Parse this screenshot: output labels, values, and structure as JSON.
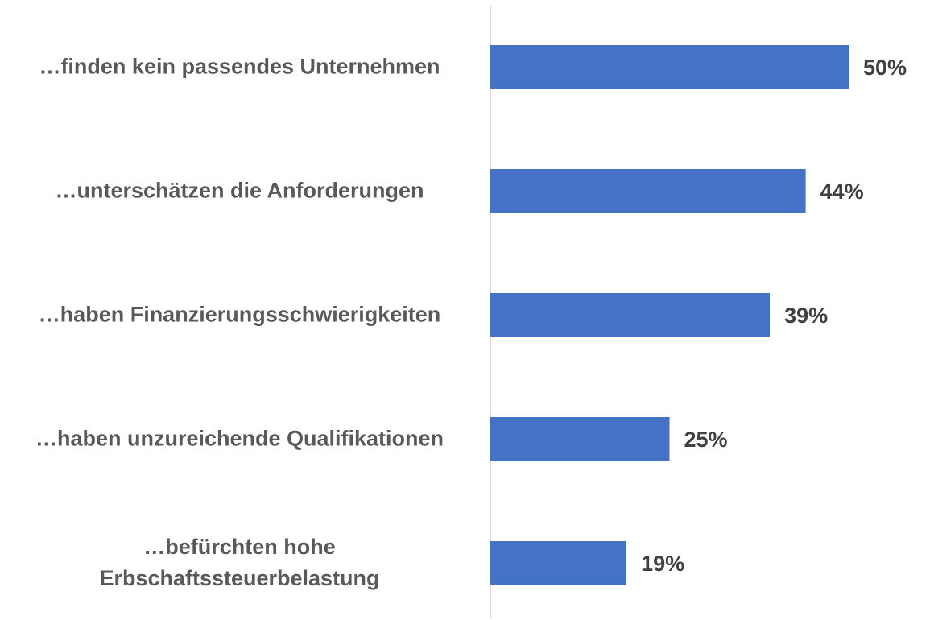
{
  "chart_data": {
    "type": "barh",
    "categories": [
      "…finden kein passendes Unternehmen",
      "…unterschätzen die Anforderungen",
      "…haben Finanzierungsschwierigkeiten",
      "…haben unzureichende Qualifikationen",
      "…befürchten hohe Erbschaftssteuerbelastung"
    ],
    "values": [
      50,
      44,
      39,
      25,
      19
    ],
    "value_labels": [
      "50%",
      "44%",
      "39%",
      "25%",
      "19%"
    ],
    "color": "#4472c4"
  }
}
